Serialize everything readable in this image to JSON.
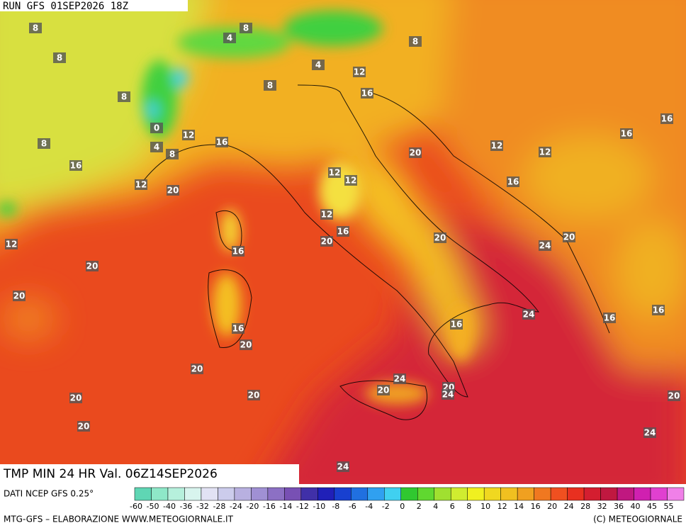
{
  "header": {
    "run": "RUN GFS 01SEP2026 18Z"
  },
  "title": "TMP MIN 24 HR Val. 06Z14SEP2026",
  "source": "DATI NCEP GFS 0.25°",
  "footer": {
    "credit": "MTG-GFS – ELABORAZIONE WWW.METEOGIORNALE.IT",
    "copyright": "(C) METEOGIORNALE"
  },
  "legend": {
    "labels": [
      -60,
      -50,
      -40,
      -36,
      -32,
      -28,
      -24,
      -20,
      -16,
      -14,
      -12,
      -10,
      -8,
      -6,
      -4,
      -2,
      0,
      2,
      4,
      6,
      8,
      10,
      12,
      14,
      16,
      20,
      24,
      28,
      32,
      36,
      40,
      45,
      55
    ],
    "colors": [
      "#5fd6b4",
      "#8ee8c8",
      "#b6f0dc",
      "#d8f4ee",
      "#e2e2f4",
      "#ccccec",
      "#b8b0e0",
      "#a090d4",
      "#8c70c4",
      "#7850b4",
      "#4030a8",
      "#2020b8",
      "#1840d0",
      "#2070e0",
      "#30a0f0",
      "#40d0f0",
      "#30c830",
      "#60d830",
      "#a0e030",
      "#d0ec30",
      "#f0f020",
      "#f0d820",
      "#f0c020",
      "#f0a020",
      "#f07820",
      "#f05020",
      "#e83020",
      "#d41e30",
      "#c01840",
      "#c01880",
      "#d020b0",
      "#e040d0",
      "#f080e8"
    ]
  },
  "map": {
    "contour_labels": [
      8,
      8,
      4,
      8,
      8,
      4,
      12,
      8,
      8,
      16,
      16,
      0,
      12,
      16,
      8,
      4,
      16,
      8,
      20,
      12,
      12,
      16,
      12,
      12,
      12,
      20,
      16,
      12,
      16,
      20,
      20,
      20,
      12,
      24,
      16,
      20,
      20,
      16,
      24,
      16,
      16,
      16,
      20,
      20,
      24,
      20,
      20,
      24,
      20,
      20,
      20,
      20,
      24,
      24
    ]
  }
}
